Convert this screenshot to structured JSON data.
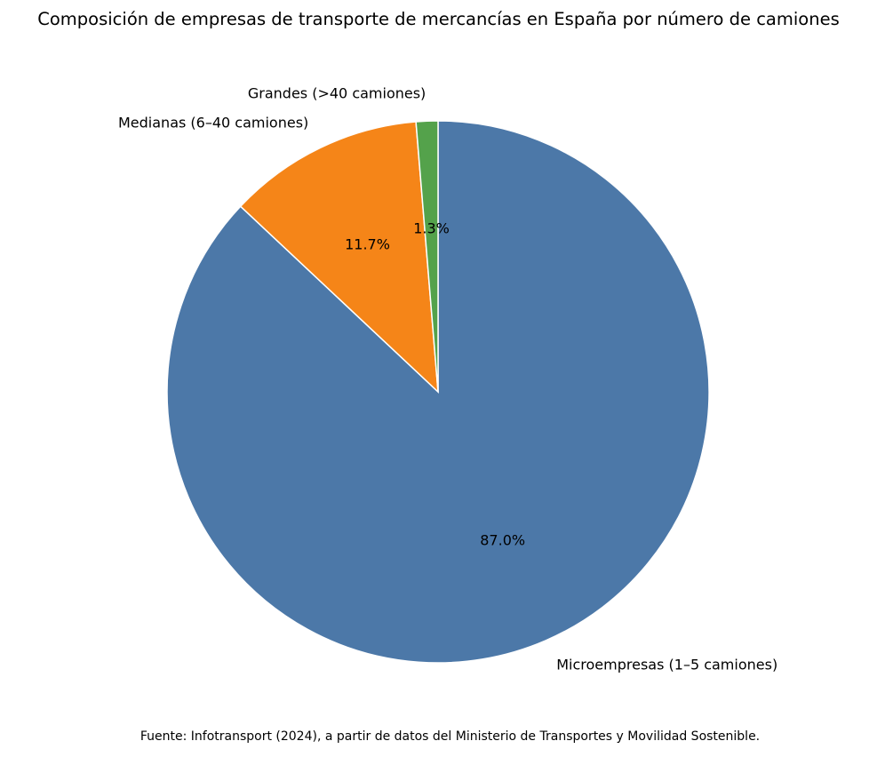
{
  "chart_data": {
    "type": "pie",
    "title": "Composición de empresas de transporte de mercancías en España por número de camiones",
    "categories": [
      "Microempresas (1–5 camiones)",
      "Medianas (6–40 camiones)",
      "Grandes (>40 camiones)"
    ],
    "values": [
      87.0,
      11.7,
      1.3
    ],
    "value_labels": [
      "87.0%",
      "11.7%",
      "1.3%"
    ],
    "colors": [
      "#4c78a8",
      "#f58518",
      "#54a24b"
    ],
    "start_angle": 90,
    "direction": "clockwise",
    "footnote": "Fuente: Infotransport (2024), a partir de datos del Ministerio de Transportes y Movilidad Sostenible."
  }
}
